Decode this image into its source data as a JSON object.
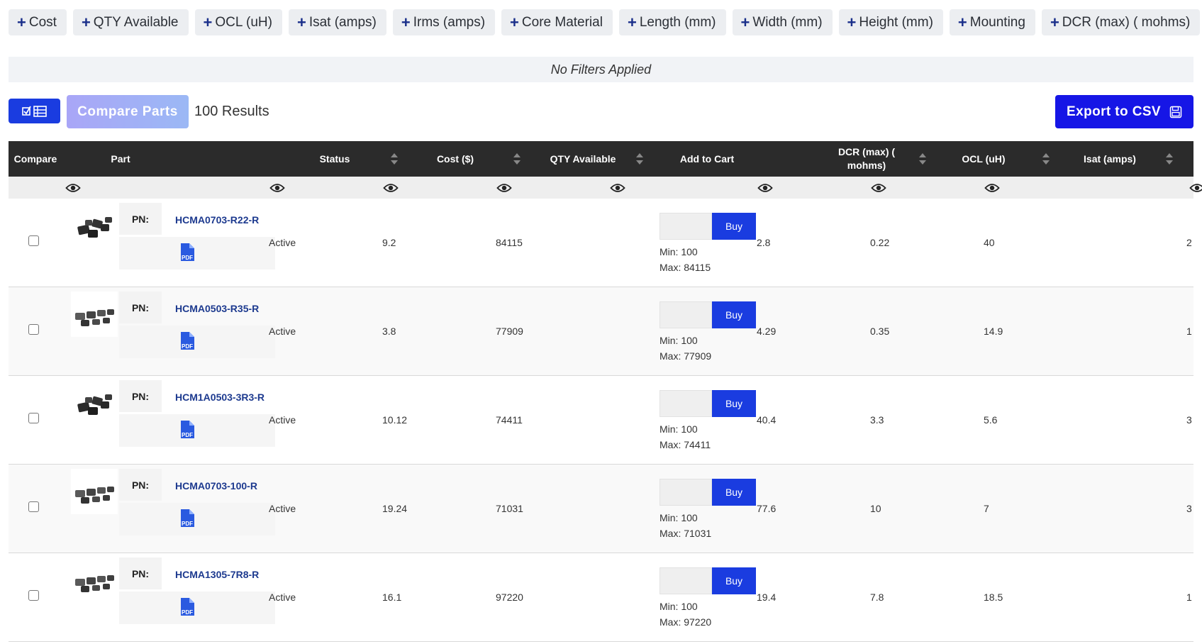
{
  "filters": [
    "Cost",
    "QTY Available",
    "OCL (uH)",
    "Isat (amps)",
    "Irms (amps)",
    "Core Material",
    "Length (mm)",
    "Width (mm)",
    "Height (mm)",
    "Mounting",
    "DCR (max) ( mohms)"
  ],
  "no_filters": "No Filters Applied",
  "toolbar": {
    "compare_label": "Compare Parts",
    "results": "100 Results",
    "export_label": "Export to CSV"
  },
  "columns": {
    "compare": "Compare",
    "part": "Part",
    "status": "Status",
    "cost": "Cost ($)",
    "qty": "QTY Available",
    "add_to_cart": "Add to Cart",
    "dcr": "DCR (max) ( mohms)",
    "ocl": "OCL (uH)",
    "isat": "Isat (amps)"
  },
  "pn_label": "PN:",
  "buy_label": "Buy",
  "rows": [
    {
      "pn": "HCMA0703-R22-R",
      "status": "Active",
      "cost": "9.2",
      "qty": "84115",
      "min": "Min: 100",
      "max": "Max: 84115",
      "dcr": "2.8",
      "ocl": "0.22",
      "isat": "40",
      "next": "2",
      "thumb": "cluster"
    },
    {
      "pn": "HCMA0503-R35-R",
      "status": "Active",
      "cost": "3.8",
      "qty": "77909",
      "min": "Min: 100",
      "max": "Max: 77909",
      "dcr": "4.29",
      "ocl": "0.35",
      "isat": "14.9",
      "next": "1",
      "thumb": "rows"
    },
    {
      "pn": "HCM1A0503-3R3-R",
      "status": "Active",
      "cost": "10.12",
      "qty": "74411",
      "min": "Min: 100",
      "max": "Max: 74411",
      "dcr": "40.4",
      "ocl": "3.3",
      "isat": "5.6",
      "next": "3",
      "thumb": "cluster"
    },
    {
      "pn": "HCMA0703-100-R",
      "status": "Active",
      "cost": "19.24",
      "qty": "71031",
      "min": "Min: 100",
      "max": "Max: 71031",
      "dcr": "77.6",
      "ocl": "10",
      "isat": "7",
      "next": "3",
      "thumb": "rows"
    },
    {
      "pn": "HCMA1305-7R8-R",
      "status": "Active",
      "cost": "16.1",
      "qty": "97220",
      "min": "Min: 100",
      "max": "Max: 97220",
      "dcr": "19.4",
      "ocl": "7.8",
      "isat": "18.5",
      "next": "1",
      "thumb": "rows"
    }
  ]
}
